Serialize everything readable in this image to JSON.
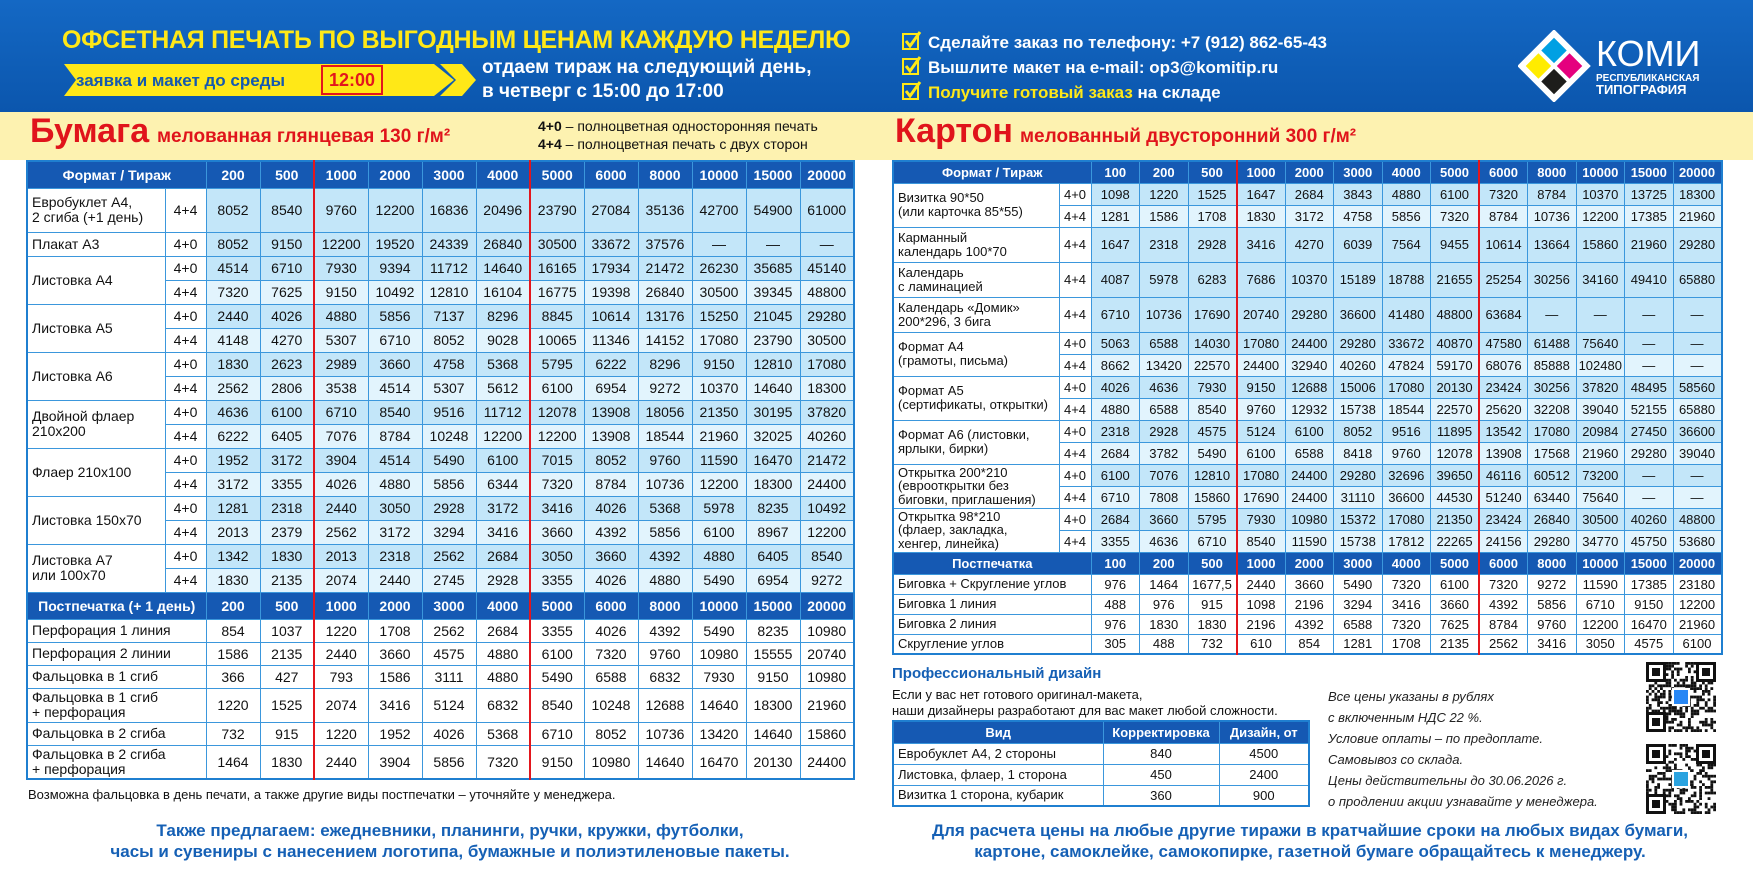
{
  "header": {
    "title": "ОФСЕТНАЯ ПЕЧАТЬ ПО ВЫГОДНЫМ ЦЕНАМ КАЖДУЮ НЕДЕЛЮ",
    "deadline": {
      "text": "заявка и макет до среды",
      "time": "12:00"
    },
    "delivery": [
      "отдаем тираж на следующий день,",
      "в четверг с 15:00 до 17:00"
    ],
    "contacts": [
      {
        "label": "Сделайте заказ по телефону:",
        "value": "+7 (912) 862-65-43"
      },
      {
        "label": "Вышлите макет на e-mail:",
        "value": "op3@komitip.ru"
      },
      {
        "label": "Получите готовый заказ",
        "value": "на складе"
      }
    ],
    "logo": {
      "name": "КОМИ",
      "line1": "РЕСПУБЛИКАНСКАЯ",
      "line2": "ТИПОГРАФИЯ"
    }
  },
  "paper": {
    "title": "Бумага",
    "subtitle": "мелованная глянцевая 130 г/м²",
    "legend": [
      {
        "code": "4+0",
        "text": "– полноцветная односторонняя печать"
      },
      {
        "code": "4+4",
        "text": "– полноцветная печать с двух сторон"
      }
    ],
    "table": {
      "head": "Формат / Тираж",
      "quantities": [
        200,
        500,
        1000,
        2000,
        3000,
        4000,
        5000,
        6000,
        8000,
        10000,
        15000,
        20000
      ],
      "rows": [
        {
          "name": "Евробуклет А4,\n2 сгиба  (+1 день)",
          "prints": [
            "4+4"
          ],
          "prices": [
            [
              8052,
              8540,
              9760,
              12200,
              16836,
              20496,
              23790,
              27084,
              35136,
              42700,
              54900,
              61000
            ]
          ]
        },
        {
          "name": "Плакат А3",
          "prints": [
            "4+0"
          ],
          "prices": [
            [
              8052,
              9150,
              12200,
              19520,
              24339,
              26840,
              30500,
              33672,
              37576,
              "—",
              "—",
              "—"
            ]
          ]
        },
        {
          "name": "Листовка А4",
          "prints": [
            "4+0",
            "4+4"
          ],
          "prices": [
            [
              4514,
              6710,
              7930,
              9394,
              11712,
              14640,
              16165,
              17934,
              21472,
              26230,
              35685,
              45140
            ],
            [
              7320,
              7625,
              9150,
              10492,
              12810,
              16104,
              16775,
              19398,
              26840,
              30500,
              39345,
              48800
            ]
          ]
        },
        {
          "name": "Листовка А5",
          "prints": [
            "4+0",
            "4+4"
          ],
          "prices": [
            [
              2440,
              4026,
              4880,
              5856,
              7137,
              8296,
              8845,
              10614,
              13176,
              15250,
              21045,
              29280
            ],
            [
              4148,
              4270,
              5307,
              6710,
              8052,
              9028,
              10065,
              11346,
              14152,
              17080,
              23790,
              30500
            ]
          ]
        },
        {
          "name": "Листовка А6",
          "prints": [
            "4+0",
            "4+4"
          ],
          "prices": [
            [
              1830,
              2623,
              2989,
              3660,
              4758,
              5368,
              5795,
              6222,
              8296,
              9150,
              12810,
              17080
            ],
            [
              2562,
              2806,
              3538,
              4514,
              5307,
              5612,
              6100,
              6954,
              9272,
              10370,
              14640,
              18300
            ]
          ]
        },
        {
          "name": "Двойной  флаер\n210х200",
          "prints": [
            "4+0",
            "4+4"
          ],
          "prices": [
            [
              4636,
              6100,
              6710,
              8540,
              9516,
              11712,
              12078,
              13908,
              18056,
              21350,
              30195,
              37820
            ],
            [
              6222,
              6405,
              7076,
              8784,
              10248,
              12200,
              12200,
              13908,
              18544,
              21960,
              32025,
              40260
            ]
          ]
        },
        {
          "name": "Флаер 210х100",
          "prints": [
            "4+0",
            "4+4"
          ],
          "prices": [
            [
              1952,
              3172,
              3904,
              4514,
              5490,
              6100,
              7015,
              8052,
              9760,
              11590,
              16470,
              21472
            ],
            [
              3172,
              3355,
              4026,
              4880,
              5856,
              6344,
              7320,
              8784,
              10736,
              12200,
              18300,
              24400
            ]
          ]
        },
        {
          "name": "Листовка 150х70",
          "prints": [
            "4+0",
            "4+4"
          ],
          "prices": [
            [
              1281,
              2318,
              2440,
              3050,
              2928,
              3172,
              3416,
              4026,
              5368,
              5978,
              8235,
              10492
            ],
            [
              2013,
              2379,
              2562,
              3172,
              3294,
              3416,
              3660,
              4392,
              5856,
              6100,
              8967,
              12200
            ]
          ]
        },
        {
          "name": "Листовка А7\nили 100х70",
          "prints": [
            "4+0",
            "4+4"
          ],
          "prices": [
            [
              1342,
              1830,
              2013,
              2318,
              2562,
              2684,
              3050,
              3660,
              4392,
              4880,
              6405,
              8540
            ],
            [
              1830,
              2135,
              2074,
              2440,
              2745,
              2928,
              3355,
              4026,
              4880,
              5490,
              6954,
              9272
            ]
          ]
        }
      ]
    },
    "postpress": {
      "head": "Постпечатка (+ 1 день)",
      "quantities": [
        200,
        500,
        1000,
        2000,
        3000,
        4000,
        5000,
        6000,
        8000,
        10000,
        15000,
        20000
      ],
      "rows": [
        {
          "name": "Перфорация 1 линия",
          "prices": [
            854,
            1037,
            1220,
            1708,
            2562,
            2684,
            3355,
            4026,
            4392,
            5490,
            8235,
            10980
          ]
        },
        {
          "name": "Перфорация 2 линии",
          "prices": [
            1586,
            2135,
            2440,
            3660,
            4575,
            4880,
            6100,
            7320,
            9760,
            10980,
            15555,
            20740
          ]
        },
        {
          "name": "Фальцовка в 1 сгиб",
          "prices": [
            366,
            427,
            793,
            1586,
            3111,
            4880,
            5490,
            6588,
            6832,
            7930,
            9150,
            10980
          ]
        },
        {
          "name": "Фальцовка в 1 сгиб\n+ перфорация",
          "prices": [
            1220,
            1525,
            2074,
            3416,
            5124,
            6832,
            8540,
            10248,
            12688,
            14640,
            18300,
            21960
          ]
        },
        {
          "name": "Фальцовка в 2 сгиба",
          "prices": [
            732,
            915,
            1220,
            1952,
            4026,
            5368,
            6710,
            8052,
            10736,
            13420,
            14640,
            15860
          ]
        },
        {
          "name": "Фальцовка в 2 сгиба\n+ перфорация",
          "prices": [
            1464,
            1830,
            2440,
            3904,
            5856,
            7320,
            9150,
            10980,
            14640,
            16470,
            20130,
            24400
          ]
        }
      ]
    },
    "note": "Возможна фальцовка в день печати, а также другие виды постпечатки – уточняйте у менеджера.",
    "offer": "Также предлагаем: ежедневники, планинги, ручки, кружки, футболки,\nчасы и сувениры с нанесением логотипа, бумажные и полиэтиленовые пакеты."
  },
  "cardboard": {
    "title": "Картон",
    "subtitle": "мелованный двусторонний 300 г/м²",
    "table": {
      "head": "Формат / Тираж",
      "quantities": [
        100,
        200,
        500,
        1000,
        2000,
        3000,
        4000,
        5000,
        6000,
        8000,
        10000,
        15000,
        20000
      ],
      "rows": [
        {
          "name": "Визитка 90*50\n(или карточка 85*55)",
          "prints": [
            "4+0",
            "4+4"
          ],
          "prices": [
            [
              1098,
              1220,
              1525,
              1647,
              2684,
              3843,
              4880,
              6100,
              7320,
              8784,
              10370,
              13725,
              18300
            ],
            [
              1281,
              1586,
              1708,
              1830,
              3172,
              4758,
              5856,
              7320,
              8784,
              10736,
              12200,
              17385,
              21960
            ]
          ]
        },
        {
          "name": "Карманный\nкалендарь 100*70",
          "prints": [
            "4+4"
          ],
          "prices": [
            [
              1647,
              2318,
              2928,
              3416,
              4270,
              6039,
              7564,
              9455,
              10614,
              13664,
              15860,
              21960,
              29280
            ]
          ]
        },
        {
          "name": "Календарь\nс ламинацией",
          "prints": [
            "4+4"
          ],
          "prices": [
            [
              4087,
              5978,
              6283,
              7686,
              10370,
              15189,
              18788,
              21655,
              25254,
              30256,
              34160,
              49410,
              65880
            ]
          ]
        },
        {
          "name": "Календарь «Домик»\n200*296, 3 бига",
          "prints": [
            "4+4"
          ],
          "prices": [
            [
              6710,
              10736,
              17690,
              20740,
              29280,
              36600,
              41480,
              48800,
              63684,
              "—",
              "—",
              "—",
              "—"
            ]
          ]
        },
        {
          "name": "Формат  А4\n(грамоты, письма)",
          "prints": [
            "4+0",
            "4+4"
          ],
          "prices": [
            [
              5063,
              6588,
              14030,
              17080,
              24400,
              29280,
              33672,
              40870,
              47580,
              61488,
              75640,
              "—",
              "—"
            ],
            [
              8662,
              13420,
              22570,
              24400,
              32940,
              40260,
              47824,
              59170,
              68076,
              85888,
              102480,
              "—",
              "—"
            ]
          ]
        },
        {
          "name": "Формат  А5\n(сертификаты, открытки)",
          "prints": [
            "4+0",
            "4+4"
          ],
          "prices": [
            [
              4026,
              4636,
              7930,
              9150,
              12688,
              15006,
              17080,
              20130,
              23424,
              30256,
              37820,
              48495,
              58560
            ],
            [
              4880,
              6588,
              8540,
              9760,
              12932,
              15738,
              18544,
              22570,
              25620,
              32208,
              39040,
              52155,
              65880
            ]
          ]
        },
        {
          "name": "Формат А6 (листовки,\nярлыки, бирки)",
          "prints": [
            "4+0",
            "4+4"
          ],
          "prices": [
            [
              2318,
              2928,
              4575,
              5124,
              6100,
              8052,
              9516,
              11895,
              13542,
              17080,
              20984,
              27450,
              36600
            ],
            [
              2684,
              3782,
              5490,
              6100,
              6588,
              8418,
              9760,
              12078,
              13908,
              17568,
              21960,
              29280,
              39040
            ]
          ]
        },
        {
          "name": "Открытка  200*210\n(еврооткрытки без\nбиговки, приглашения)",
          "prints": [
            "4+0",
            "4+4"
          ],
          "prices": [
            [
              6100,
              7076,
              12810,
              17080,
              24400,
              29280,
              32696,
              39650,
              46116,
              60512,
              73200,
              "—",
              "—"
            ],
            [
              6710,
              7808,
              15860,
              17690,
              24400,
              31110,
              36600,
              44530,
              51240,
              63440,
              75640,
              "—",
              "—"
            ]
          ]
        },
        {
          "name": "Открытка  98*210\n(флаер, закладка,\nхенгер, линейка)",
          "prints": [
            "4+0",
            "4+4"
          ],
          "prices": [
            [
              2684,
              3660,
              5795,
              7930,
              10980,
              15372,
              17080,
              21350,
              23424,
              26840,
              30500,
              40260,
              48800
            ],
            [
              3355,
              4636,
              6710,
              8540,
              11590,
              15738,
              17812,
              22265,
              24156,
              29280,
              34770,
              45750,
              53680
            ]
          ]
        }
      ]
    },
    "postpress": {
      "head": "Постпечатка",
      "quantities": [
        100,
        200,
        500,
        1000,
        2000,
        3000,
        4000,
        5000,
        6000,
        8000,
        10000,
        15000,
        20000
      ],
      "rows": [
        {
          "name": "Биговка + Скругление углов",
          "prices": [
            976,
            1464,
            "1677,5",
            2440,
            3660,
            5490,
            7320,
            6100,
            7320,
            9272,
            11590,
            17385,
            23180
          ]
        },
        {
          "name": "Биговка 1 линия",
          "prices": [
            488,
            976,
            915,
            1098,
            2196,
            3294,
            3416,
            3660,
            4392,
            5856,
            6710,
            9150,
            12200
          ]
        },
        {
          "name": "Биговка 2 линия",
          "prices": [
            976,
            1830,
            1830,
            2196,
            4392,
            6588,
            7320,
            7625,
            8784,
            9760,
            12200,
            16470,
            21960
          ]
        },
        {
          "name": "Скругление углов",
          "prices": [
            305,
            488,
            732,
            610,
            854,
            1281,
            1708,
            2135,
            2562,
            3416,
            3050,
            4575,
            6100
          ]
        }
      ]
    }
  },
  "design": {
    "title": "Профессиональный дизайн",
    "text": "Если у вас нет готового оригинал-макета,\nнаши дизайнеры разработают для вас макет любой сложности.",
    "table": {
      "columns": [
        "Вид",
        "Корректировка",
        "Дизайн, от"
      ],
      "rows": [
        [
          "Евробуклет А4, 2 стороны",
          840,
          4500
        ],
        [
          "Листовка, флаер, 1 сторона",
          450,
          2400
        ],
        [
          "Визитка 1 сторона, кубарик",
          360,
          900
        ]
      ]
    }
  },
  "notes": [
    "Все цены указаны в рублях",
    "с включенным НДС 22 %.",
    "Условие оплаты – по предоплате.",
    "Самовывоз со склада.",
    "Цены действительны до 30.06.2026 г.",
    "о продлении акции узнавайте у менеджера."
  ],
  "footer": "Для расчета цены на любые другие тиражи в кратчайшие сроки на любых видах бумаги,\nкартоне, самоклейке, самокопирке, газетной бумаге обращайтесь к менеджеру."
}
